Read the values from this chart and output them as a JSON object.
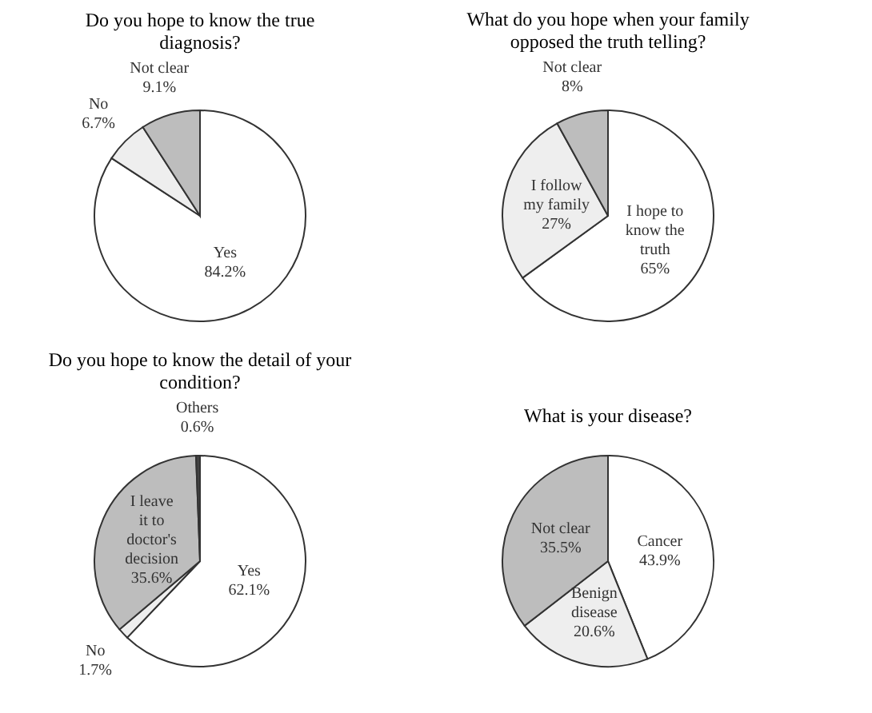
{
  "chart_data": [
    {
      "type": "pie",
      "title": "Do you hope to know the true diagnosis?",
      "categories": [
        "Yes",
        "No",
        "Not clear"
      ],
      "values": [
        84.2,
        6.7,
        9.1
      ],
      "value_labels": [
        "84.2%",
        "6.7%",
        "9.1%"
      ],
      "colors": [
        "#ffffff",
        "#eeeeee",
        "#bdbdbd"
      ],
      "legend": false
    },
    {
      "type": "pie",
      "title": "What do you hope when your family opposed the truth telling?",
      "categories": [
        "I hope to know the truth",
        "I follow my family",
        "Not clear"
      ],
      "values": [
        65,
        27,
        8
      ],
      "value_labels": [
        "65%",
        "27%",
        "8%"
      ],
      "colors": [
        "#ffffff",
        "#eeeeee",
        "#bdbdbd"
      ],
      "legend": false
    },
    {
      "type": "pie",
      "title": "Do you hope to know the detail of your condition?",
      "categories": [
        "Yes",
        "No",
        "I leave it to doctor's decision",
        "Others"
      ],
      "values": [
        62.1,
        1.7,
        35.6,
        0.6
      ],
      "value_labels": [
        "62.1%",
        "1.7%",
        "35.6%",
        "0.6%"
      ],
      "colors": [
        "#ffffff",
        "#eeeeee",
        "#bdbdbd",
        "#444444"
      ],
      "legend": false
    },
    {
      "type": "pie",
      "title": "What is your disease?",
      "categories": [
        "Cancer",
        "Benign disease",
        "Not clear"
      ],
      "values": [
        43.9,
        20.6,
        35.5
      ],
      "value_labels": [
        "43.9%",
        "20.6%",
        "35.5%"
      ],
      "colors": [
        "#ffffff",
        "#eeeeee",
        "#bdbdbd"
      ],
      "legend": false
    }
  ]
}
